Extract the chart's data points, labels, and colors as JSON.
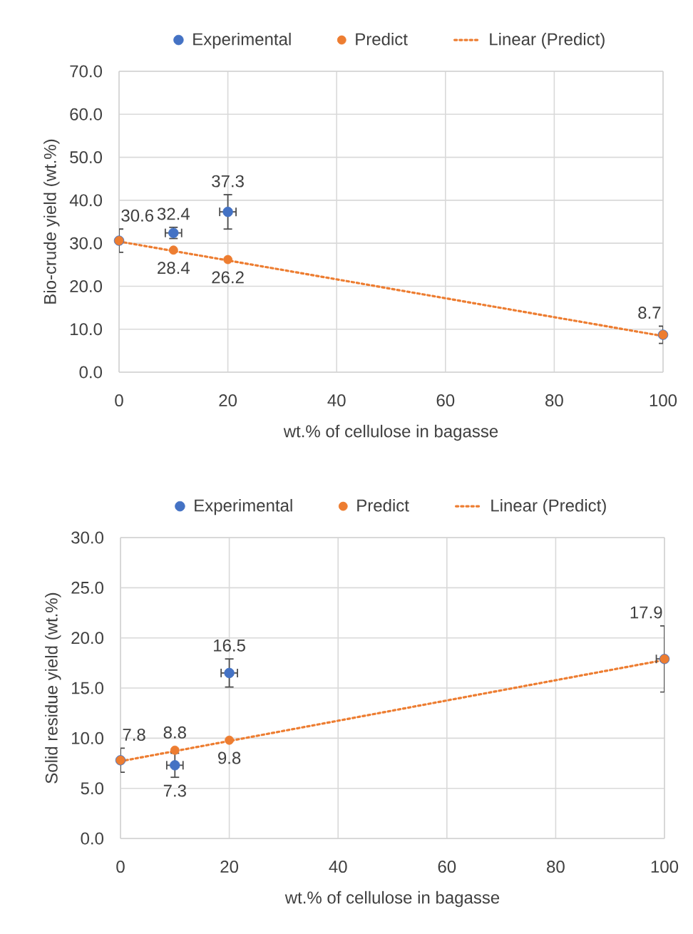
{
  "chart_data": [
    {
      "type": "scatter",
      "xlabel": "wt.% of cellulose in bagasse",
      "ylabel": "Bio-crude yield (wt.%)",
      "xlim": [
        0,
        100
      ],
      "xticks": [
        0,
        20,
        40,
        60,
        80,
        100
      ],
      "ylim": [
        0,
        70
      ],
      "yticks": [
        {
          "value": 0,
          "label": "0.0"
        },
        {
          "value": 10,
          "label": "10.0"
        },
        {
          "value": 20,
          "label": "20.0"
        },
        {
          "value": 30,
          "label": "30.0"
        },
        {
          "value": 40,
          "label": "40.0"
        },
        {
          "value": 50,
          "label": "50.0"
        },
        {
          "value": 60,
          "label": "60.0"
        },
        {
          "value": 70,
          "label": "70.0"
        }
      ],
      "grid": true,
      "legend": "top",
      "series": [
        {
          "name": "Experimental",
          "color": "#4472c4",
          "x": [
            0,
            10,
            20,
            100
          ],
          "values": [
            30.6,
            32.4,
            37.3,
            8.7
          ],
          "errors": [
            2.7,
            1.3,
            4,
            2
          ],
          "xerrors": [
            null,
            1.5,
            1.5,
            null
          ],
          "value_labels": [
            "30.6",
            "32.4",
            "37.3",
            "8.7"
          ]
        },
        {
          "name": "Predict",
          "color": "#ed7d31",
          "x": [
            0,
            10,
            20,
            100
          ],
          "values": [
            30.6,
            28.4,
            26.2,
            8.7
          ],
          "value_labels": [
            null,
            "28.4",
            "26.2",
            null
          ]
        },
        {
          "name": "Linear (Predict)",
          "type": "line",
          "color": "#ed7d31",
          "line_style": "dotted",
          "x": [
            0,
            100
          ],
          "values": [
            30.4,
            8.4
          ]
        }
      ]
    },
    {
      "type": "scatter",
      "xlabel": "wt.% of cellulose in bagasse",
      "ylabel": "Solid residue yield (wt.%)",
      "xlim": [
        0,
        100
      ],
      "xticks": [
        0,
        20,
        40,
        60,
        80,
        100
      ],
      "ylim": [
        0,
        30
      ],
      "yticks": [
        {
          "value": 0,
          "label": "0.0"
        },
        {
          "value": 5,
          "label": "5.0"
        },
        {
          "value": 10,
          "label": "10.0"
        },
        {
          "value": 15,
          "label": "15.0"
        },
        {
          "value": 20,
          "label": "20.0"
        },
        {
          "value": 25,
          "label": "25.0"
        },
        {
          "value": 30,
          "label": "30.0"
        }
      ],
      "grid": true,
      "legend": "top",
      "series": [
        {
          "name": "Experimental",
          "color": "#4472c4",
          "x": [
            0,
            10,
            20,
            100
          ],
          "values": [
            7.8,
            7.3,
            16.5,
            17.9
          ],
          "errors": [
            1.2,
            1.2,
            1.4,
            3.3
          ],
          "xerrors": [
            null,
            1.5,
            1.5,
            1.5
          ],
          "value_labels": [
            "7.8",
            "7.3",
            "16.5",
            "17.9"
          ]
        },
        {
          "name": "Predict",
          "color": "#ed7d31",
          "x": [
            0,
            10,
            20,
            100
          ],
          "values": [
            7.8,
            8.8,
            9.8,
            17.9
          ],
          "value_labels": [
            null,
            "8.8",
            "9.8",
            null
          ]
        },
        {
          "name": "Linear (Predict)",
          "type": "line",
          "color": "#ed7d31",
          "line_style": "dotted",
          "x": [
            0,
            100
          ],
          "values": [
            7.7,
            17.8
          ]
        }
      ]
    }
  ]
}
